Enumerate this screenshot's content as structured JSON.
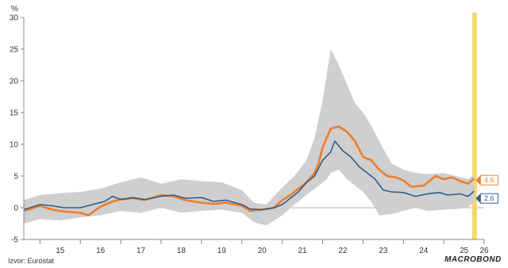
{
  "chart_data": {
    "type": "line",
    "ylabel": "%",
    "ylim": [
      -5,
      30
    ],
    "yticks": [
      -5,
      0,
      5,
      10,
      15,
      20,
      25,
      30
    ],
    "xlim": [
      2014.6,
      2026.0
    ],
    "xticks": [
      "15",
      "16",
      "17",
      "18",
      "19",
      "20",
      "21",
      "22",
      "23",
      "24",
      "25",
      "26"
    ],
    "highlight": {
      "from": 2025.7,
      "to": 2025.82,
      "color": "#f5d76e"
    },
    "band": {
      "color": "#cfcfcf",
      "x": [
        2014.6,
        2015.0,
        2015.5,
        2016.0,
        2016.5,
        2017.0,
        2017.5,
        2018.0,
        2018.5,
        2019.0,
        2019.5,
        2020.0,
        2020.3,
        2020.6,
        2021.0,
        2021.3,
        2021.6,
        2021.8,
        2022.0,
        2022.1,
        2022.2,
        2022.4,
        2022.6,
        2022.8,
        2023.0,
        2023.2,
        2023.4,
        2023.7,
        2024.0,
        2024.3,
        2024.6,
        2025.0,
        2025.3,
        2025.6,
        2025.75
      ],
      "upper": [
        1.2,
        2.0,
        2.3,
        2.5,
        3.0,
        4.0,
        4.8,
        3.8,
        4.5,
        4.2,
        4.0,
        2.8,
        0.8,
        0.5,
        3.2,
        5.0,
        7.5,
        11.0,
        17.0,
        21.0,
        25.0,
        22.5,
        19.5,
        16.5,
        15.0,
        13.0,
        10.5,
        7.0,
        6.0,
        5.5,
        5.3,
        5.5,
        5.0,
        4.5,
        5.2
      ],
      "lower": [
        -2.5,
        -1.8,
        -2.0,
        -1.5,
        -1.2,
        -0.5,
        -0.8,
        0.0,
        -0.8,
        -0.5,
        -0.3,
        -0.8,
        -2.3,
        -2.8,
        -1.2,
        0.5,
        2.0,
        3.0,
        4.0,
        4.5,
        5.5,
        6.0,
        4.5,
        3.5,
        2.5,
        1.0,
        -1.2,
        -1.0,
        -0.5,
        0.0,
        -0.5,
        -0.3,
        -0.2,
        0.0,
        1.0
      ]
    },
    "series": [
      {
        "color": "#ee7d2b",
        "end_label": "4.6",
        "x": [
          2014.6,
          2015.0,
          2015.3,
          2015.6,
          2016.0,
          2016.2,
          2016.5,
          2016.8,
          2017.0,
          2017.3,
          2017.6,
          2018.0,
          2018.3,
          2018.6,
          2019.0,
          2019.3,
          2019.6,
          2020.0,
          2020.2,
          2020.5,
          2020.8,
          2021.0,
          2021.2,
          2021.4,
          2021.6,
          2021.8,
          2021.9,
          2022.0,
          2022.2,
          2022.4,
          2022.6,
          2022.8,
          2023.0,
          2023.2,
          2023.4,
          2023.6,
          2023.8,
          2024.0,
          2024.2,
          2024.5,
          2024.8,
          2025.0,
          2025.2,
          2025.4,
          2025.6,
          2025.75
        ],
        "values": [
          -0.5,
          0.3,
          -0.3,
          -0.6,
          -0.8,
          -1.2,
          0.2,
          1.0,
          1.3,
          1.5,
          1.2,
          2.0,
          1.8,
          1.2,
          0.8,
          0.6,
          0.8,
          0.3,
          -0.5,
          -0.3,
          0.0,
          1.2,
          2.0,
          3.0,
          4.0,
          5.5,
          7.0,
          9.5,
          12.5,
          12.8,
          12.0,
          10.5,
          8.0,
          7.5,
          6.0,
          5.0,
          4.8,
          4.3,
          3.3,
          3.5,
          5.0,
          4.5,
          4.8,
          4.2,
          3.8,
          4.6
        ]
      },
      {
        "color": "#2e5c8c",
        "end_label": "2.6",
        "x": [
          2014.6,
          2015.0,
          2015.3,
          2015.6,
          2016.0,
          2016.3,
          2016.6,
          2016.8,
          2017.0,
          2017.3,
          2017.6,
          2018.0,
          2018.3,
          2018.6,
          2019.0,
          2019.3,
          2019.6,
          2020.0,
          2020.2,
          2020.5,
          2020.8,
          2021.0,
          2021.2,
          2021.4,
          2021.6,
          2021.8,
          2022.0,
          2022.2,
          2022.3,
          2022.5,
          2022.7,
          2022.9,
          2023.1,
          2023.3,
          2023.5,
          2023.7,
          2024.0,
          2024.3,
          2024.6,
          2024.9,
          2025.1,
          2025.4,
          2025.6,
          2025.75
        ],
        "values": [
          -0.3,
          0.5,
          0.3,
          0.0,
          0.0,
          0.5,
          1.0,
          1.8,
          1.3,
          1.6,
          1.3,
          1.8,
          2.0,
          1.5,
          1.6,
          1.0,
          1.2,
          0.5,
          -0.2,
          -0.3,
          0.0,
          0.5,
          1.5,
          2.5,
          4.0,
          5.0,
          7.5,
          8.8,
          10.5,
          9.0,
          8.0,
          6.5,
          5.5,
          4.5,
          2.8,
          2.5,
          2.4,
          1.8,
          2.2,
          2.4,
          2.0,
          2.2,
          1.8,
          2.6
        ]
      }
    ]
  },
  "source": "Izvor: Eurostat",
  "brand": "MACROBOND"
}
